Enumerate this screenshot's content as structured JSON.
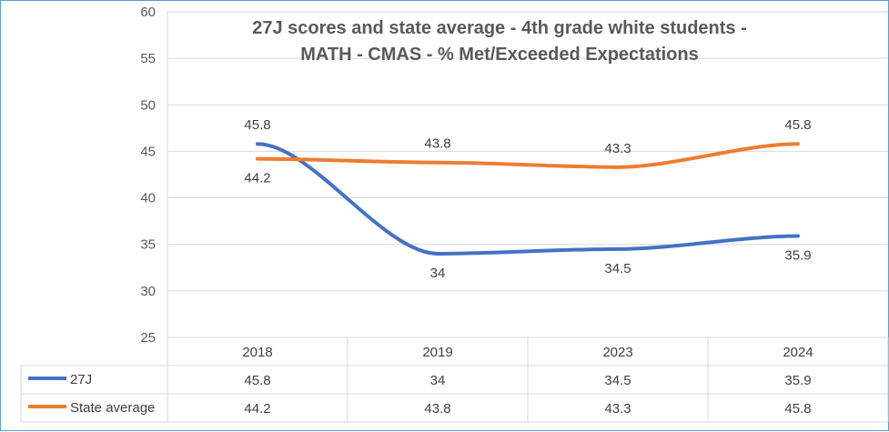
{
  "chart_data": {
    "type": "line",
    "title": "27J scores and state average - 4th grade white students -",
    "subtitle": "MATH - CMAS - % Met/Exceeded Expectations",
    "categories": [
      "2018",
      "2019",
      "2023",
      "2024"
    ],
    "series": [
      {
        "name": "27J",
        "values": [
          45.8,
          34,
          34.5,
          35.9
        ],
        "color": "#4472c4"
      },
      {
        "name": "State average",
        "values": [
          44.2,
          43.8,
          43.3,
          45.8
        ],
        "color": "#ed7d31"
      }
    ],
    "ylim": [
      25,
      60
    ],
    "yticks": [
      25,
      30,
      35,
      40,
      45,
      50,
      55,
      60
    ],
    "grid": true,
    "legend": "data-table"
  }
}
